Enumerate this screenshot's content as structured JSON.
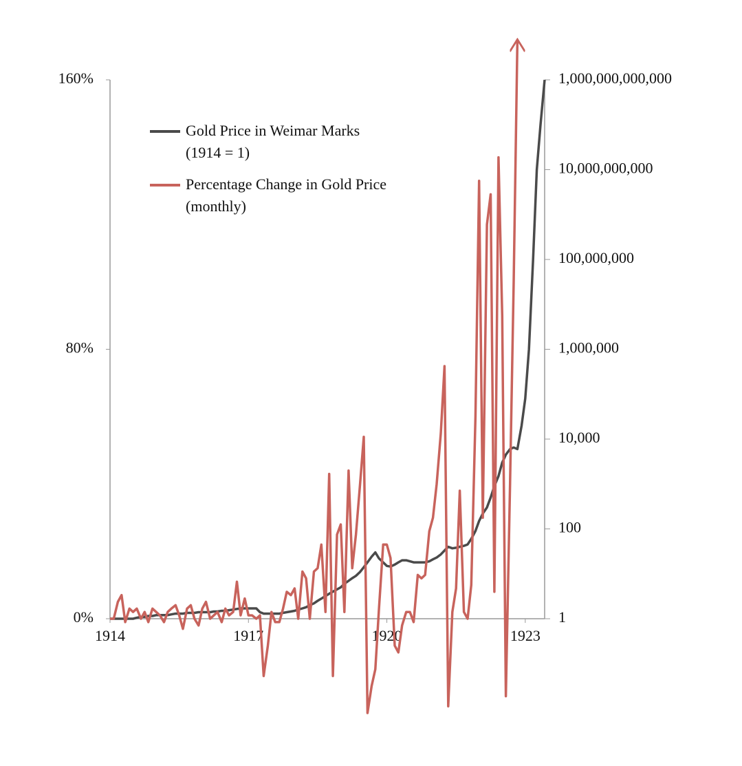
{
  "chart_data": {
    "type": "line",
    "x": [
      1914,
      1914.08,
      1914.17,
      1914.25,
      1914.33,
      1914.42,
      1914.5,
      1914.58,
      1914.67,
      1914.75,
      1914.83,
      1914.92,
      1915,
      1915.08,
      1915.17,
      1915.25,
      1915.33,
      1915.42,
      1915.5,
      1915.58,
      1915.67,
      1915.75,
      1915.83,
      1915.92,
      1916,
      1916.08,
      1916.17,
      1916.25,
      1916.33,
      1916.42,
      1916.5,
      1916.58,
      1916.67,
      1916.75,
      1916.83,
      1916.92,
      1917,
      1917.08,
      1917.17,
      1917.25,
      1917.33,
      1917.42,
      1917.5,
      1917.58,
      1917.67,
      1917.75,
      1917.83,
      1917.92,
      1918,
      1918.08,
      1918.17,
      1918.25,
      1918.33,
      1918.42,
      1918.5,
      1918.58,
      1918.67,
      1918.75,
      1918.83,
      1918.92,
      1919,
      1919.08,
      1919.17,
      1919.25,
      1919.33,
      1919.42,
      1919.5,
      1919.58,
      1919.67,
      1919.75,
      1919.83,
      1919.92,
      1920,
      1920.08,
      1920.17,
      1920.25,
      1920.33,
      1920.42,
      1920.5,
      1920.58,
      1920.67,
      1920.75,
      1920.83,
      1920.92,
      1921,
      1921.08,
      1921.17,
      1921.25,
      1921.33,
      1921.42,
      1921.5,
      1921.58,
      1921.67,
      1921.75,
      1921.83,
      1921.92,
      1922,
      1922.08,
      1922.17,
      1922.25,
      1922.33,
      1922.42,
      1922.5,
      1922.58,
      1922.67,
      1922.75,
      1922.83,
      1922.92,
      1923,
      1923.08,
      1923.17,
      1923.25,
      1923.33,
      1923.42
    ],
    "series": [
      {
        "name": "Gold Price in Weimar Marks\n(1914 = 1)",
        "color": "#4a4a4a",
        "axis": "y2",
        "values": [
          1,
          1,
          1,
          1,
          1,
          1,
          1,
          1.05,
          1.1,
          1.1,
          1.15,
          1.15,
          1.2,
          1.2,
          1.2,
          1.2,
          1.25,
          1.3,
          1.3,
          1.3,
          1.35,
          1.35,
          1.35,
          1.4,
          1.4,
          1.4,
          1.4,
          1.45,
          1.45,
          1.5,
          1.5,
          1.55,
          1.6,
          1.65,
          1.7,
          1.7,
          1.7,
          1.7,
          1.7,
          1.4,
          1.3,
          1.3,
          1.3,
          1.3,
          1.3,
          1.35,
          1.4,
          1.45,
          1.5,
          1.6,
          1.7,
          1.8,
          2,
          2.2,
          2.5,
          2.8,
          3.2,
          3.6,
          4,
          4.5,
          5,
          6,
          7,
          8,
          9,
          11,
          14,
          18,
          24,
          30,
          22,
          18,
          15,
          14.5,
          16,
          18,
          20,
          20,
          19,
          18,
          18,
          18,
          18,
          19,
          21,
          23,
          27,
          33,
          40,
          37,
          38,
          40,
          42,
          45,
          60,
          90,
          150,
          220,
          300,
          500,
          900,
          1500,
          3000,
          4500,
          6000,
          6500,
          6000,
          20000,
          80000,
          1000000,
          100000000,
          10000000000,
          100000000000,
          1000000000000
        ]
      },
      {
        "name": "Percentage Change in Gold Price\n(monthly)",
        "color": "#c8635c",
        "values": [
          0,
          0,
          5,
          7,
          -1,
          3,
          2,
          3,
          0,
          2,
          -1,
          3,
          2,
          1,
          -1,
          2,
          3,
          4,
          1,
          -3,
          3,
          4,
          0,
          -2,
          3,
          5,
          0,
          1,
          2,
          -1,
          3,
          1,
          2,
          11,
          1,
          6,
          1,
          1,
          0,
          1,
          -17,
          -8,
          2,
          -1,
          -1,
          3,
          8,
          7,
          9,
          0,
          14,
          12,
          0,
          14,
          15,
          22,
          2,
          43,
          -17,
          25,
          28,
          2,
          44,
          15,
          25,
          40,
          54,
          -28,
          -20,
          -15,
          3,
          22,
          22,
          18,
          -8,
          -10,
          -2,
          2,
          2,
          -1,
          13,
          12,
          13,
          26,
          30,
          40,
          55,
          75,
          -26,
          2,
          9,
          38,
          2,
          0,
          10,
          60,
          130,
          30,
          117,
          126,
          8,
          137,
          90,
          -23,
          40,
          100,
          172,
          null,
          null,
          null,
          null,
          null,
          null,
          null
        ]
      }
    ],
    "xlim": [
      1914,
      1923.42
    ],
    "xticks": [
      1914,
      1917,
      1920,
      1923
    ],
    "ylim": [
      0,
      160
    ],
    "yticks": [
      {
        "value": 0,
        "label": "0%"
      },
      {
        "value": 80,
        "label": "80%"
      },
      {
        "value": 160,
        "label": "160%"
      }
    ],
    "y2lim": [
      1,
      1000000000000
    ],
    "y2scale": "log",
    "y2ticks": [
      {
        "value": 1,
        "label": "1"
      },
      {
        "value": 100,
        "label": "100"
      },
      {
        "value": 10000,
        "label": "10,000"
      },
      {
        "value": 1000000,
        "label": "1,000,000"
      },
      {
        "value": 100000000,
        "label": "100,000,000"
      },
      {
        "value": 10000000000,
        "label": "10,000,000,000"
      },
      {
        "value": 1000000000000,
        "label": "1,000,000,000,000"
      }
    ],
    "legend": "upper left",
    "grid": false
  }
}
